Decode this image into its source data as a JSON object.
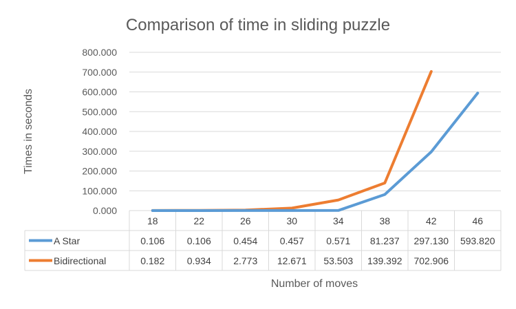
{
  "chart_data": {
    "type": "line",
    "title": "Comparison of time in sliding puzzle",
    "xlabel": "Number of moves",
    "ylabel": "Times in seconds",
    "categories": [
      "18",
      "22",
      "26",
      "30",
      "34",
      "38",
      "42",
      "46"
    ],
    "ylim": [
      0,
      800
    ],
    "yticks": [
      "0.000",
      "100.000",
      "200.000",
      "300.000",
      "400.000",
      "500.000",
      "600.000",
      "700.000",
      "800.000"
    ],
    "grid": true,
    "legend": "data-table",
    "series": [
      {
        "name": "A Star",
        "color": "#5B9BD5",
        "values": [
          0.106,
          0.106,
          0.454,
          0.457,
          0.571,
          81.237,
          297.13,
          593.82
        ],
        "labels": [
          "0.106",
          "0.106",
          "0.454",
          "0.457",
          "0.571",
          "81.237",
          "297.130",
          "593.820"
        ]
      },
      {
        "name": "Bidirectional",
        "color": "#ED7D31",
        "values": [
          0.182,
          0.934,
          2.773,
          12.671,
          53.503,
          139.392,
          702.906,
          null
        ],
        "labels": [
          "0.182",
          "0.934",
          "2.773",
          "12.671",
          "53.503",
          "139.392",
          "702.906",
          ""
        ]
      }
    ]
  }
}
